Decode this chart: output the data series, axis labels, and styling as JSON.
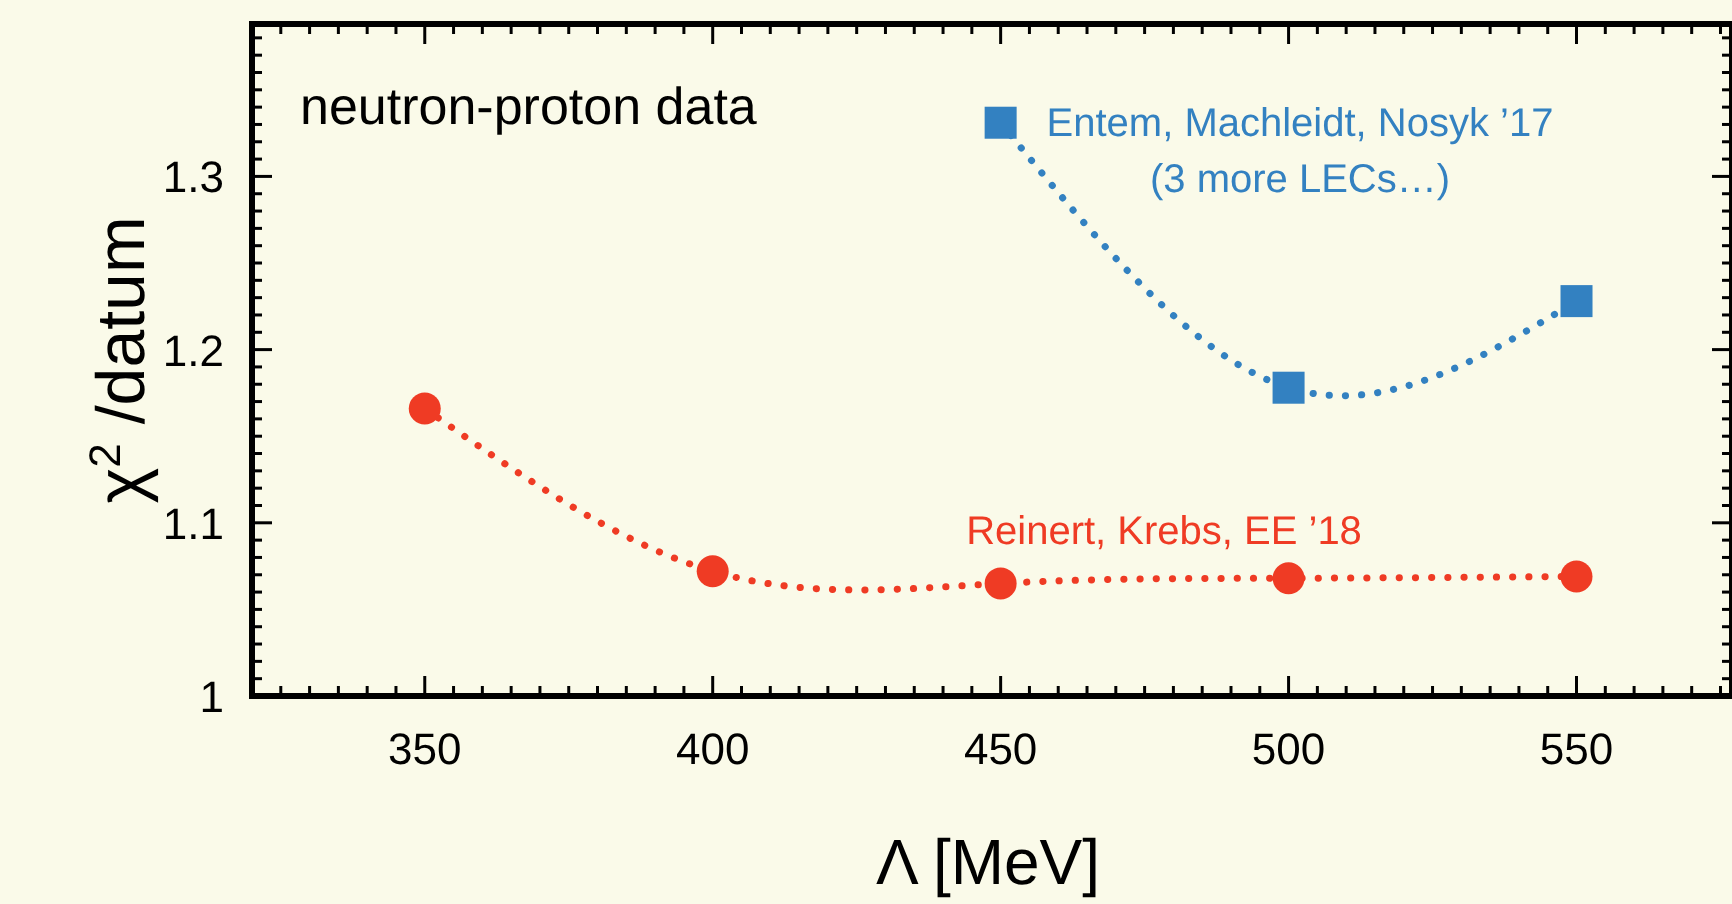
{
  "chart_data": {
    "type": "line",
    "title": "neutron-proton data",
    "xlabel": "Λ [MeV]",
    "ylabel": "χ$^{2}$ /datum",
    "x": [
      350,
      400,
      450,
      500,
      550
    ],
    "series": [
      {
        "name": "Entem, Machleidt, Nosyk ’17",
        "color": "#3381c1",
        "marker": "square",
        "values": [
          null,
          null,
          1.331,
          1.178,
          1.228
        ]
      },
      {
        "name": "Reinert, Krebs, EE ’18",
        "color": "#ef3b24",
        "marker": "circle",
        "values": [
          1.166,
          1.072,
          1.065,
          1.068,
          1.069
        ]
      }
    ],
    "annotations": [
      "(3 more LECs…)"
    ],
    "line_style": "dotted",
    "grid": false,
    "xlim": [
      320,
      577
    ],
    "ylim": [
      1,
      1.388
    ],
    "xticks": [
      {
        "value": 320,
        "label": null
      },
      {
        "value": 325,
        "label": null
      },
      {
        "value": 330,
        "label": null
      },
      {
        "value": 335,
        "label": null
      },
      {
        "value": 340,
        "label": null
      },
      {
        "value": 345,
        "label": null
      },
      350,
      {
        "value": 355,
        "label": null
      },
      {
        "value": 360,
        "label": null
      },
      {
        "value": 365,
        "label": null
      },
      {
        "value": 370,
        "label": null
      },
      {
        "value": 375,
        "label": null
      },
      {
        "value": 380,
        "label": null
      },
      {
        "value": 385,
        "label": null
      },
      {
        "value": 390,
        "label": null
      },
      {
        "value": 395,
        "label": null
      },
      400,
      {
        "value": 405,
        "label": null
      },
      {
        "value": 410,
        "label": null
      },
      {
        "value": 415,
        "label": null
      },
      {
        "value": 420,
        "label": null
      },
      {
        "value": 425,
        "label": null
      },
      {
        "value": 430,
        "label": null
      },
      {
        "value": 435,
        "label": null
      },
      {
        "value": 440,
        "label": null
      },
      {
        "value": 445,
        "label": null
      },
      450,
      {
        "value": 455,
        "label": null
      },
      {
        "value": 460,
        "label": null
      },
      {
        "value": 465,
        "label": null
      },
      {
        "value": 470,
        "label": null
      },
      {
        "value": 475,
        "label": null
      },
      {
        "value": 480,
        "label": null
      },
      {
        "value": 485,
        "label": null
      },
      {
        "value": 490,
        "label": null
      },
      {
        "value": 495,
        "label": null
      },
      500,
      {
        "value": 505,
        "label": null
      },
      {
        "value": 510,
        "label": null
      },
      {
        "value": 515,
        "label": null
      },
      {
        "value": 520,
        "label": null
      },
      {
        "value": 525,
        "label": null
      },
      {
        "value": 530,
        "label": null
      },
      {
        "value": 535,
        "label": null
      },
      {
        "value": 540,
        "label": null
      },
      {
        "value": 545,
        "label": null
      },
      550,
      {
        "value": 555,
        "label": null
      },
      {
        "value": 560,
        "label": null
      },
      {
        "value": 565,
        "label": null
      },
      {
        "value": 570,
        "label": null
      },
      {
        "value": 575,
        "label": null
      }
    ],
    "yticks": [
      1,
      {
        "value": 1.01,
        "label": null
      },
      {
        "value": 1.02,
        "label": null
      },
      {
        "value": 1.03,
        "label": null
      },
      {
        "value": 1.04,
        "label": null
      },
      {
        "value": 1.05,
        "label": null
      },
      {
        "value": 1.06,
        "label": null
      },
      {
        "value": 1.07,
        "label": null
      },
      {
        "value": 1.08,
        "label": null
      },
      {
        "value": 1.09,
        "label": null
      },
      1.1,
      {
        "value": 1.11,
        "label": null
      },
      {
        "value": 1.12,
        "label": null
      },
      {
        "value": 1.13,
        "label": null
      },
      {
        "value": 1.14,
        "label": null
      },
      {
        "value": 1.15,
        "label": null
      },
      {
        "value": 1.16,
        "label": null
      },
      {
        "value": 1.17,
        "label": null
      },
      {
        "value": 1.18,
        "label": null
      },
      {
        "value": 1.19,
        "label": null
      },
      1.2,
      {
        "value": 1.21,
        "label": null
      },
      {
        "value": 1.22,
        "label": null
      },
      {
        "value": 1.23,
        "label": null
      },
      {
        "value": 1.24,
        "label": null
      },
      {
        "value": 1.25,
        "label": null
      },
      {
        "value": 1.26,
        "label": null
      },
      {
        "value": 1.27,
        "label": null
      },
      {
        "value": 1.28,
        "label": null
      },
      {
        "value": 1.29,
        "label": null
      },
      1.3,
      {
        "value": 1.31,
        "label": null
      },
      {
        "value": 1.32,
        "label": null
      },
      {
        "value": 1.33,
        "label": null
      },
      {
        "value": 1.34,
        "label": null
      },
      {
        "value": 1.35,
        "label": null
      },
      {
        "value": 1.36,
        "label": null
      },
      {
        "value": 1.37,
        "label": null
      },
      {
        "value": 1.38,
        "label": null
      }
    ]
  }
}
